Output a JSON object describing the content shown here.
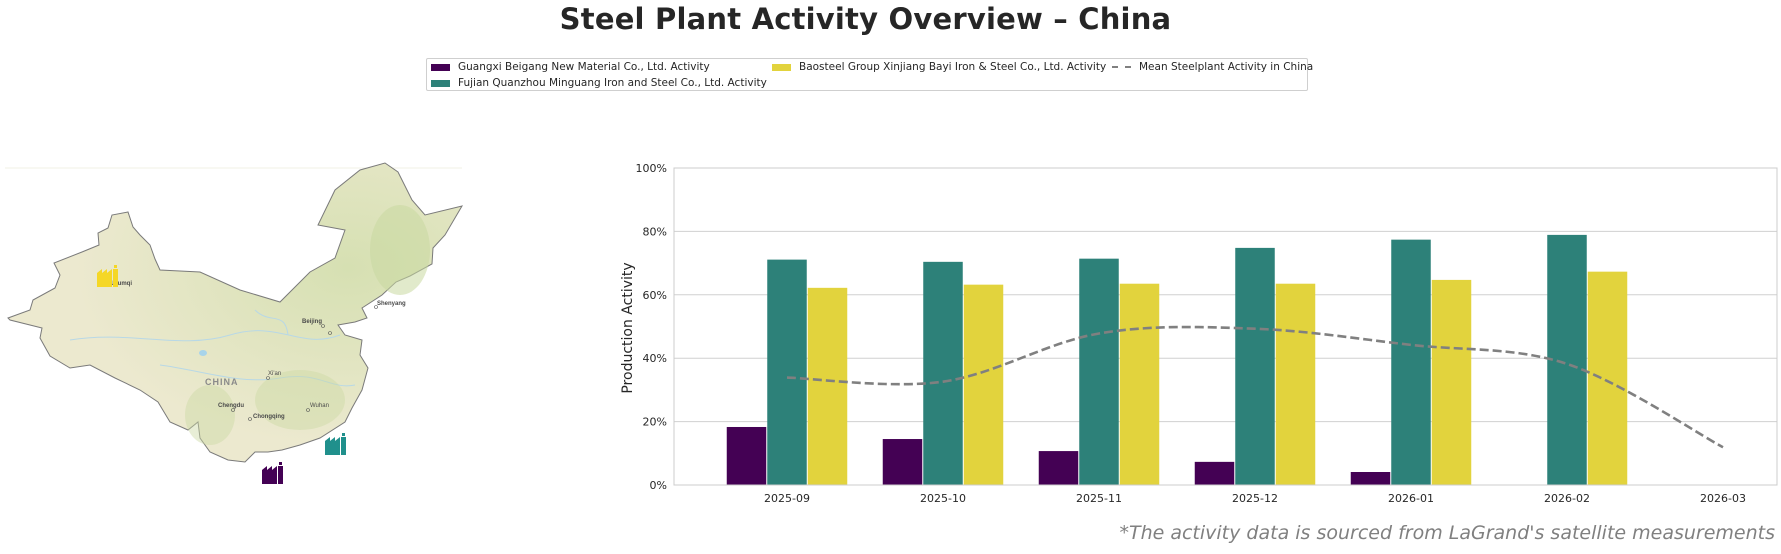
{
  "title": "Steel Plant Activity Overview – China",
  "footnote": "*The activity data is sourced from LaGrand's satellite measurements",
  "legend": {
    "items": [
      {
        "label": "Guangxi Beigang New Material Co., Ltd. Activity",
        "color": "#440154",
        "kind": "bar"
      },
      {
        "label": "Fujian Quanzhou Minguang Iron and Steel Co., Ltd. Activity",
        "color": "#2d8179",
        "kind": "bar"
      },
      {
        "label": "Baosteel Group Xinjiang Bayi Iron & Steel Co., Ltd. Activity",
        "color": "#e2d33d",
        "kind": "bar"
      },
      {
        "label": "Mean Steelplant Activity in China",
        "color": "#808080",
        "kind": "dashed-line"
      }
    ]
  },
  "map": {
    "country_label": "CHINA",
    "cities": [
      "Urumqi",
      "Beijing",
      "Shenyang",
      "Tianjin",
      "Xi'an",
      "Chengdu",
      "Chongqing",
      "Wuhan",
      "Hong Kong"
    ],
    "markers": [
      {
        "plant": "Baosteel Group Xinjiang Bayi Iron & Steel Co., Ltd.",
        "color": "#f5d726",
        "near": "Urumqi"
      },
      {
        "plant": "Fujian Quanzhou Minguang Iron and Steel Co., Ltd.",
        "color": "#20908c",
        "near": "Quanzhou"
      },
      {
        "plant": "Guangxi Beigang New Material Co., Ltd.",
        "color": "#440154",
        "near": "Beihai"
      }
    ]
  },
  "chart_data": {
    "type": "bar",
    "title": "",
    "xlabel": "",
    "ylabel": "Production Activity",
    "ylim": [
      0,
      100
    ],
    "yticks": [
      "0%",
      "20%",
      "40%",
      "60%",
      "80%",
      "100%"
    ],
    "ytick_values": [
      0,
      20,
      40,
      60,
      80,
      100
    ],
    "grid": true,
    "legend_position": "top-center",
    "categories": [
      "2025-09",
      "2025-10",
      "2025-11",
      "2025-12",
      "2026-01",
      "2026-02",
      "2026-03"
    ],
    "series": [
      {
        "name": "Guangxi Beigang New Material Co., Ltd. Activity",
        "type": "bar",
        "color": "#440154",
        "values": [
          18.3,
          14.5,
          10.7,
          7.3,
          4.1,
          null,
          null
        ]
      },
      {
        "name": "Fujian Quanzhou Minguang Iron and Steel Co., Ltd. Activity",
        "type": "bar",
        "color": "#2d8179",
        "values": [
          71.1,
          70.4,
          71.4,
          74.8,
          77.4,
          78.9,
          null
        ]
      },
      {
        "name": "Baosteel Group Xinjiang Bayi Iron & Steel Co., Ltd. Activity",
        "type": "bar",
        "color": "#e2d33d",
        "values": [
          62.2,
          63.2,
          63.5,
          63.5,
          64.7,
          67.3,
          null
        ]
      },
      {
        "name": "Mean Steelplant Activity in China",
        "type": "line",
        "style": "dashed",
        "color": "#808080",
        "values": [
          33.9,
          32.6,
          47.8,
          49.3,
          44.2,
          38.2,
          11.9
        ]
      }
    ]
  }
}
